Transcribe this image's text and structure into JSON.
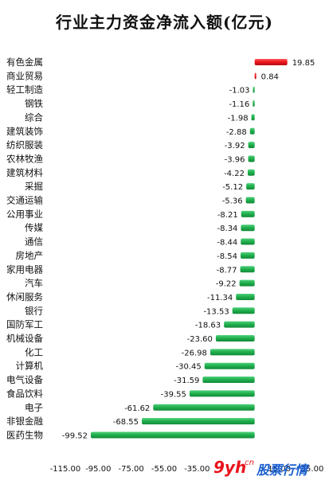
{
  "chart_data": {
    "type": "bar",
    "orientation": "horizontal",
    "title": "行业主力资金净流入额(亿元)",
    "xlabel": "",
    "ylabel": "",
    "xlim": [
      -115,
      35
    ],
    "x_ticks": [
      "-115.00",
      "-95.00",
      "-75.00",
      "-55.00",
      "-35.00",
      "15.00",
      "35.00"
    ],
    "grid": false,
    "positive_color": "#e8141b",
    "negative_color": "#1fae4c",
    "categories": [
      "有色金属",
      "商业贸易",
      "轻工制造",
      "钢铁",
      "综合",
      "建筑装饰",
      "纺织服装",
      "农林牧渔",
      "建筑材料",
      "采掘",
      "交通运输",
      "公用事业",
      "传媒",
      "通信",
      "房地产",
      "家用电器",
      "汽车",
      "休闲服务",
      "银行",
      "国防军工",
      "机械设备",
      "化工",
      "计算机",
      "电气设备",
      "食品饮料",
      "电子",
      "非银金融",
      "医药生物"
    ],
    "values": [
      19.85,
      0.84,
      -1.03,
      -1.16,
      -1.98,
      -2.88,
      -3.92,
      -3.96,
      -4.22,
      -5.12,
      -5.36,
      -8.21,
      -8.34,
      -8.44,
      -8.54,
      -8.77,
      -9.22,
      -11.34,
      -13.53,
      -18.63,
      -23.6,
      -26.98,
      -30.45,
      -31.59,
      -39.55,
      -61.62,
      -68.55,
      -99.52
    ],
    "value_labels": [
      "19.85",
      "0.84",
      "-1.03",
      "-1.16",
      "-1.98",
      "-2.88",
      "-3.92",
      "-3.96",
      "-4.22",
      "-5.12",
      "-5.36",
      "-8.21",
      "-8.34",
      "-8.44",
      "-8.54",
      "-8.77",
      "-9.22",
      "-11.34",
      "-13.53",
      "-18.63",
      "-23.60",
      "-26.98",
      "-30.45",
      "-31.59",
      "-39.55",
      "-61.62",
      "-68.55",
      "-99.52"
    ]
  },
  "watermark": {
    "part1": "9yh",
    "part2": ".cn",
    "part3": "股票行情",
    "color1": "#e8141b",
    "color2": "#1a5fd0"
  }
}
